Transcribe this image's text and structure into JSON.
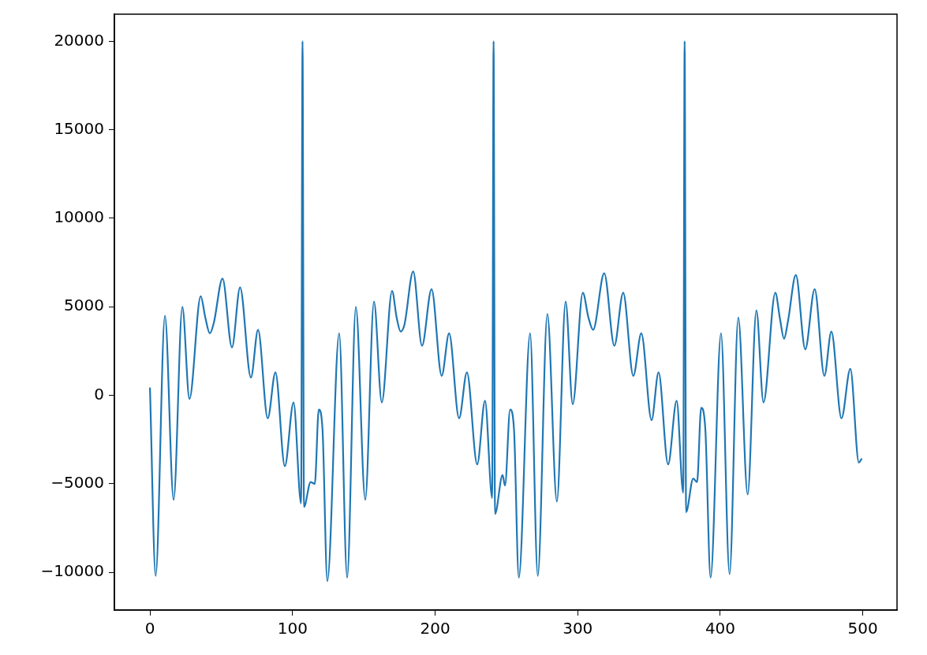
{
  "chart_data": {
    "type": "line",
    "xlim": [
      -24.95,
      523.95
    ],
    "ylim": [
      -12130,
      21530
    ],
    "xticks": [
      0,
      100,
      200,
      300,
      400,
      500
    ],
    "yticks": [
      {
        "value": -10000,
        "label": "−10000"
      },
      {
        "value": -5000,
        "label": "−5000"
      },
      0,
      5000,
      10000,
      15000,
      20000
    ],
    "grid": false,
    "legend": false,
    "marker": "none",
    "line_style": "solid",
    "series": [
      {
        "color": "#1f77b4",
        "x": [
          0,
          4,
          10.5,
          16.6,
          22.7,
          27.7,
          35.6,
          38.8,
          42,
          44.8,
          50.9,
          57.5,
          63.2,
          70.8,
          75.8,
          82.6,
          88,
          94.6,
          100.7,
          106,
          107,
          108,
          112.7,
          115.6,
          118.4,
          121,
          124.4,
          132.7,
          138.3,
          144.4,
          151,
          157.1,
          162.6,
          169.8,
          173,
          175.8,
          178.5,
          184.6,
          190.8,
          197.5,
          204.6,
          209.8,
          216.8,
          222.3,
          229.5,
          235,
          240,
          241,
          242,
          247.3,
          249,
          252.6,
          255.3,
          258.7,
          266.6,
          272,
          278.7,
          285.4,
          291.5,
          296.5,
          303.6,
          307.5,
          310.8,
          318.6,
          325.7,
          331.9,
          339,
          344.6,
          351.8,
          356.7,
          363.4,
          369.4,
          374,
          375,
          376,
          381,
          383.7,
          386.6,
          389.5,
          393.2,
          400.5,
          406.5,
          412.6,
          419.2,
          425.3,
          430.3,
          438.6,
          441.9,
          444.7,
          447.5,
          453,
          459.6,
          466.2,
          473,
          477.9,
          485,
          491.2,
          497.2,
          499
        ],
        "values": [
          400,
          -10200,
          4500,
          -5900,
          5000,
          -200,
          5600,
          4400,
          3500,
          4100,
          6600,
          2700,
          6100,
          1000,
          3700,
          -1300,
          1300,
          -4000,
          -400,
          -6100,
          20000,
          -6300,
          -4900,
          -5000,
          -800,
          -1900,
          -10500,
          3500,
          -10300,
          5000,
          -5900,
          5300,
          -400,
          5900,
          4400,
          3600,
          4000,
          7000,
          2800,
          6000,
          1100,
          3500,
          -1300,
          1300,
          -3900,
          -300,
          -5800,
          20000,
          -6700,
          -4500,
          -5100,
          -800,
          -1900,
          -10300,
          3500,
          -10200,
          4600,
          -6000,
          5300,
          -500,
          5800,
          4400,
          3700,
          6900,
          2800,
          5800,
          1100,
          3500,
          -1400,
          1300,
          -3900,
          -300,
          -5500,
          20000,
          -6600,
          -4700,
          -4900,
          -700,
          -1900,
          -10300,
          3500,
          -10100,
          4400,
          -5600,
          4800,
          -400,
          5800,
          4300,
          3200,
          4200,
          6800,
          2600,
          6000,
          1100,
          3600,
          -1300,
          1500,
          -3800,
          -3600
        ]
      }
    ]
  }
}
